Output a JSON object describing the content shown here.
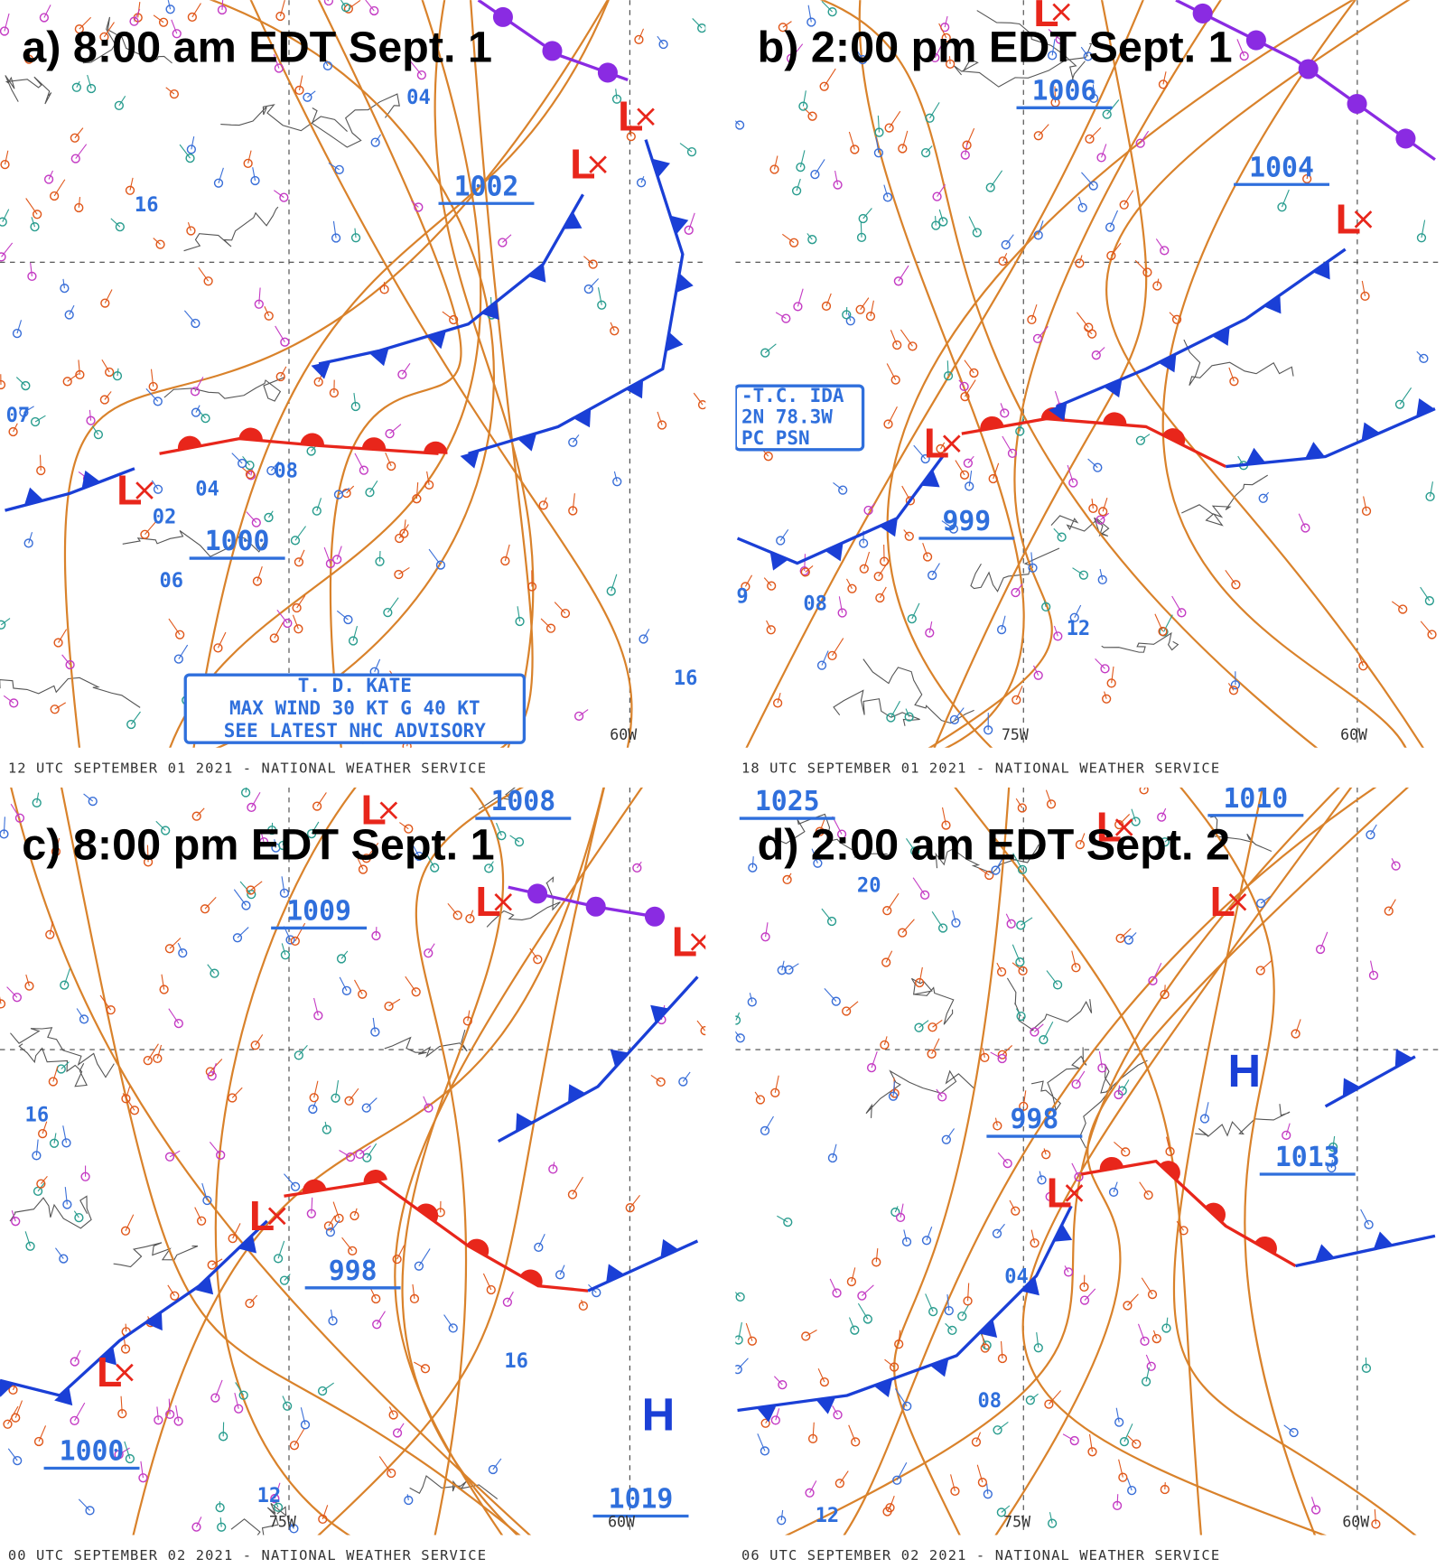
{
  "panels": [
    {
      "title": "a) 8:00 am EDT Sept. 1",
      "caption": "12 UTC SEPTEMBER 01 2021 - NATIONAL WEATHER SERVICE",
      "pressure_labels": [
        "1002",
        "1000"
      ],
      "isobar_labels": [
        "04",
        "04",
        "16",
        "02",
        "06",
        "08",
        "07",
        "16"
      ],
      "lows": [
        "L",
        "L",
        "L"
      ],
      "highs": [],
      "longitude_labels": [
        "60W"
      ],
      "advisory": [
        "T. D. KATE",
        "MAX WIND 30 KT G 40 KT",
        "SEE LATEST NHC ADVISORY"
      ]
    },
    {
      "title": "b) 2:00 pm EDT Sept. 1",
      "caption": "18 UTC SEPTEMBER 01 2021 - NATIONAL WEATHER SERVICE",
      "pressure_labels": [
        "1006",
        "1004",
        "999"
      ],
      "isobar_labels": [
        "12",
        "08",
        "9"
      ],
      "lows": [
        "L",
        "L",
        "L"
      ],
      "highs": [],
      "longitude_labels": [
        "75W",
        "60W"
      ],
      "advisory": [
        "-T.C. IDA",
        "2N 78.3W",
        "PC PSN"
      ]
    },
    {
      "title": "c) 8:00 pm EDT Sept. 1",
      "caption": "00 UTC SEPTEMBER 02 2021 - NATIONAL WEATHER SERVICE",
      "pressure_labels": [
        "1008",
        "1009",
        "998",
        "1000",
        "1019"
      ],
      "isobar_labels": [
        "16",
        "16",
        "12"
      ],
      "lows": [
        "L",
        "L",
        "L",
        "L",
        "L"
      ],
      "highs": [
        "H"
      ],
      "longitude_labels": [
        "75W",
        "60W"
      ],
      "advisory": []
    },
    {
      "title": "d) 2:00 am EDT Sept. 2",
      "caption": "06 UTC SEPTEMBER 02 2021 - NATIONAL WEATHER SERVICE",
      "pressure_labels": [
        "1025",
        "1010",
        "998",
        "1013"
      ],
      "isobar_labels": [
        "20",
        "04",
        "08",
        "12"
      ],
      "lows": [
        "L",
        "L",
        "L"
      ],
      "highs": [
        "H"
      ],
      "longitude_labels": [
        "75W",
        "60W"
      ],
      "advisory": []
    }
  ]
}
